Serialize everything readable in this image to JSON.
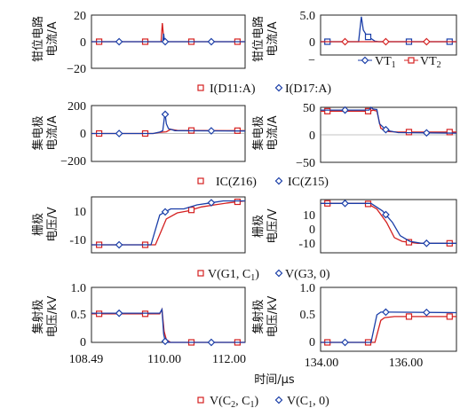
{
  "axis_title_x": "时间/μs",
  "legend_vt": [
    "VT1",
    "VT2"
  ],
  "chart_data": [
    {
      "type": "line",
      "panel": "r1-left",
      "ylabel": "钳位电路 电流/A",
      "ylim": [
        -20,
        20
      ],
      "yticks": [
        "20",
        "0",
        "−20"
      ],
      "xlim": [
        108.49,
        112.0
      ],
      "series": [
        {
          "name": "I(D11:A)",
          "color": "#d42020",
          "points": [
            [
              108.49,
              0
            ],
            [
              110.08,
              0
            ],
            [
              110.11,
              14
            ],
            [
              110.14,
              3
            ],
            [
              110.17,
              0
            ],
            [
              112.0,
              0
            ]
          ]
        },
        {
          "name": "I(D17:A)",
          "color": "#1a3ea8",
          "points": [
            [
              108.49,
              0
            ],
            [
              110.12,
              0
            ],
            [
              110.14,
              6
            ],
            [
              110.16,
              0
            ],
            [
              112.0,
              0
            ]
          ]
        }
      ]
    },
    {
      "type": "line",
      "panel": "r1-right",
      "ylabel": "钳位电路 电流/A",
      "ylim": [
        -5.0,
        5.0
      ],
      "yticks": [
        "5.0",
        "0",
        "−"
      ],
      "xlim": [
        134.0,
        137.5
      ],
      "series": [
        {
          "name": "VT1",
          "color": "#1a3ea8",
          "points": [
            [
              134.0,
              0
            ],
            [
              134.98,
              0
            ],
            [
              135.05,
              4.7
            ],
            [
              135.1,
              2.2
            ],
            [
              135.2,
              1.0
            ],
            [
              135.3,
              0.6
            ],
            [
              135.4,
              0.1
            ],
            [
              135.5,
              0
            ],
            [
              137.5,
              0
            ]
          ]
        },
        {
          "name": "VT2",
          "color": "#d42020",
          "points": [
            [
              134.0,
              0
            ],
            [
              137.5,
              0
            ]
          ]
        }
      ]
    },
    {
      "type": "line",
      "panel": "r2-left",
      "ylabel": "集电极 电流/A",
      "ylim": [
        -200,
        200
      ],
      "yticks": [
        "200",
        "0",
        "−200"
      ],
      "xlim": [
        108.49,
        112.0
      ],
      "series": [
        {
          "name": "IC(Z16)",
          "color": "#d42020",
          "points": [
            [
              108.49,
              0
            ],
            [
              109.9,
              0
            ],
            [
              110.05,
              8
            ],
            [
              110.2,
              12
            ],
            [
              110.3,
              30
            ],
            [
              110.45,
              22
            ],
            [
              112.0,
              20
            ]
          ]
        },
        {
          "name": "IC(Z15)",
          "color": "#1a3ea8",
          "points": [
            [
              108.49,
              0
            ],
            [
              109.9,
              0
            ],
            [
              110.05,
              10
            ],
            [
              110.12,
              20
            ],
            [
              110.17,
              150
            ],
            [
              110.2,
              70
            ],
            [
              110.25,
              35
            ],
            [
              110.4,
              20
            ],
            [
              112.0,
              18
            ]
          ]
        }
      ]
    },
    {
      "type": "line",
      "panel": "r2-right",
      "ylabel": "集电极 电流/A",
      "ylim": [
        -50,
        50
      ],
      "yticks": [
        "50",
        "0",
        "−50"
      ],
      "xlim": [
        134.0,
        137.5
      ],
      "series": [
        {
          "name": "IC(Z16)",
          "color": "#d42020",
          "points": [
            [
              134.0,
              43
            ],
            [
              135.28,
              43
            ],
            [
              135.35,
              45
            ],
            [
              135.45,
              43
            ],
            [
              135.55,
              12
            ],
            [
              135.75,
              6
            ],
            [
              136.0,
              5
            ],
            [
              137.5,
              5
            ]
          ]
        },
        {
          "name": "IC(Z15)",
          "color": "#1a3ea8",
          "points": [
            [
              134.0,
              45
            ],
            [
              135.25,
              45
            ],
            [
              135.3,
              50
            ],
            [
              135.35,
              47
            ],
            [
              135.45,
              46
            ],
            [
              135.52,
              20
            ],
            [
              135.7,
              8
            ],
            [
              136.0,
              4
            ],
            [
              137.5,
              3
            ]
          ]
        }
      ]
    },
    {
      "type": "line",
      "panel": "r3-left",
      "ylabel": "栅极 电压/V",
      "ylim": [
        -14,
        14
      ],
      "yticks": [
        "10",
        "-10"
      ],
      "xlim": [
        108.49,
        112.0
      ],
      "series": [
        {
          "name": "V(G1, C1)",
          "color": "#d42020",
          "points": [
            [
              108.49,
              -10
            ],
            [
              109.95,
              -10
            ],
            [
              110.2,
              3
            ],
            [
              110.45,
              6
            ],
            [
              110.7,
              7
            ],
            [
              111.0,
              9
            ],
            [
              111.3,
              10
            ],
            [
              111.6,
              11
            ],
            [
              112.0,
              12
            ]
          ]
        },
        {
          "name": "V(G3, 0)",
          "color": "#1a3ea8",
          "points": [
            [
              108.49,
              -10
            ],
            [
              109.85,
              -10
            ],
            [
              110.05,
              5
            ],
            [
              110.3,
              8
            ],
            [
              110.6,
              8
            ],
            [
              110.9,
              10
            ],
            [
              111.2,
              11
            ],
            [
              111.5,
              12
            ],
            [
              112.0,
              12
            ]
          ]
        }
      ]
    },
    {
      "type": "line",
      "panel": "r3-right",
      "ylabel": "栅极 电压/V",
      "ylim": [
        -14,
        14
      ],
      "yticks": [
        "10",
        "0",
        "-10"
      ],
      "xlim": [
        134.0,
        137.5
      ],
      "series": [
        {
          "name": "V(G1, C1)",
          "color": "#d42020",
          "points": [
            [
              134.0,
              12
            ],
            [
              135.2,
              12
            ],
            [
              135.45,
              9
            ],
            [
              135.7,
              2
            ],
            [
              135.9,
              -6
            ],
            [
              136.1,
              -8
            ],
            [
              136.5,
              -9
            ],
            [
              137.5,
              -9
            ]
          ]
        },
        {
          "name": "V(G3, 0)",
          "color": "#1a3ea8",
          "points": [
            [
              134.0,
              12
            ],
            [
              135.3,
              12
            ],
            [
              135.6,
              8
            ],
            [
              135.85,
              2
            ],
            [
              136.05,
              -5
            ],
            [
              136.3,
              -8
            ],
            [
              136.6,
              -9
            ],
            [
              137.5,
              -9
            ]
          ]
        }
      ]
    },
    {
      "type": "line",
      "panel": "r4-left",
      "ylabel": "集射极 电压/kV",
      "ylim": [
        0,
        1.0
      ],
      "yticks": [
        "1.0",
        "0.5",
        "0"
      ],
      "xlim": [
        108.49,
        112.0
      ],
      "xticks": [
        "108.49",
        "110.00",
        "112.00"
      ],
      "series": [
        {
          "name": "V(C2, C1)",
          "color": "#d42020",
          "points": [
            [
              108.49,
              0.52
            ],
            [
              110.05,
              0.52
            ],
            [
              110.1,
              0.6
            ],
            [
              110.15,
              0.2
            ],
            [
              110.2,
              0.05
            ],
            [
              110.3,
              0
            ],
            [
              112.0,
              0
            ]
          ]
        },
        {
          "name": "V(C1, 0)",
          "color": "#1a3ea8",
          "points": [
            [
              108.49,
              0.53
            ],
            [
              110.05,
              0.53
            ],
            [
              110.1,
              0.6
            ],
            [
              110.14,
              0.15
            ],
            [
              110.18,
              0
            ],
            [
              112.0,
              0
            ]
          ]
        }
      ]
    },
    {
      "type": "line",
      "panel": "r4-right",
      "ylabel": "集射极 电压/kV",
      "ylim": [
        0,
        1.0
      ],
      "yticks": [
        "1.0",
        "0.5",
        "0"
      ],
      "xlim": [
        134.0,
        137.5
      ],
      "xticks": [
        "134.00",
        "136.00"
      ],
      "series": [
        {
          "name": "V(C2, C1)",
          "color": "#d42020",
          "points": [
            [
              134.0,
              0
            ],
            [
              135.4,
              0
            ],
            [
              135.55,
              0.4
            ],
            [
              135.65,
              0.45
            ],
            [
              135.9,
              0.47
            ],
            [
              137.5,
              0.47
            ]
          ]
        },
        {
          "name": "V(C1, 0)",
          "color": "#1a3ea8",
          "points": [
            [
              134.0,
              0
            ],
            [
              135.3,
              0
            ],
            [
              135.45,
              0.5
            ],
            [
              135.55,
              0.55
            ],
            [
              135.8,
              0.55
            ],
            [
              137.5,
              0.54
            ]
          ]
        }
      ]
    }
  ]
}
